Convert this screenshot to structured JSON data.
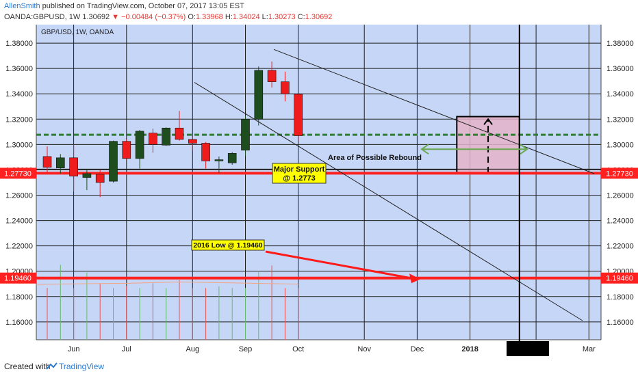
{
  "header": {
    "author": "AllenSmith",
    "published": "published on TradingView.com, October 07, 2017 13:05 EST",
    "symbol": "OANDA:GBPUSD",
    "interval": "1W",
    "last": "1.30692",
    "change_arrow": "▼",
    "change": "−0.00484 (−0.37%)",
    "o_label": "O:",
    "o": "1.33968",
    "h_label": "H:",
    "h": "1.34024",
    "l_label": "L:",
    "l": "1.30273",
    "c_label": "C:",
    "c": "1.30692"
  },
  "footer": {
    "created_with": "Created with",
    "brand": "TradingView"
  },
  "colors": {
    "plot_bg": "#c6d6f7",
    "axis_bg": "#ffffff",
    "grid": "#1e1e1e",
    "bull": "#1e4d1e",
    "bear": "#ee1c1c",
    "support": "#ff2020",
    "dotted": "#2e7d32",
    "rebound_box": "#e4b3c8",
    "green_arrow": "#6aa84f",
    "callout": "#ffff00",
    "ma": "#f4a582"
  },
  "chart_data": {
    "type": "candlestick",
    "title": "GBP/USD, 1W, OANDA",
    "x_ticks": [
      "Jun",
      "Jul",
      "Aug",
      "Sep",
      "Oct",
      "Nov",
      "Dec",
      "2018",
      "Mar"
    ],
    "y_ticks": [
      "1.38000",
      "1.36000",
      "1.34000",
      "1.32000",
      "1.30000",
      "1.28000",
      "1.26000",
      "1.24000",
      "1.22000",
      "1.20000",
      "1.18000",
      "1.16000"
    ],
    "ylim": [
      1.1459,
      1.3946
    ],
    "candles": [
      {
        "date": "2017-05-22",
        "open": 1.2905,
        "high": 1.2985,
        "low": 1.278,
        "close": 1.282
      },
      {
        "date": "2017-05-29",
        "open": 1.2815,
        "high": 1.2925,
        "low": 1.277,
        "close": 1.2895
      },
      {
        "date": "2017-06-05",
        "open": 1.2895,
        "high": 1.3,
        "low": 1.263,
        "close": 1.275
      },
      {
        "date": "2017-06-12",
        "open": 1.274,
        "high": 1.2805,
        "low": 1.264,
        "close": 1.277
      },
      {
        "date": "2017-06-19",
        "open": 1.2765,
        "high": 1.28,
        "low": 1.2585,
        "close": 1.27
      },
      {
        "date": "2017-06-26",
        "open": 1.271,
        "high": 1.303,
        "low": 1.27,
        "close": 1.3025
      },
      {
        "date": "2017-07-03",
        "open": 1.3025,
        "high": 1.304,
        "low": 1.288,
        "close": 1.289
      },
      {
        "date": "2017-07-10",
        "open": 1.289,
        "high": 1.3115,
        "low": 1.281,
        "close": 1.3105
      },
      {
        "date": "2017-07-17",
        "open": 1.309,
        "high": 1.3125,
        "low": 1.2935,
        "close": 1.3
      },
      {
        "date": "2017-07-24",
        "open": 1.2995,
        "high": 1.3135,
        "low": 1.299,
        "close": 1.313
      },
      {
        "date": "2017-07-31",
        "open": 1.313,
        "high": 1.3265,
        "low": 1.303,
        "close": 1.304
      },
      {
        "date": "2017-08-07",
        "open": 1.304,
        "high": 1.3065,
        "low": 1.2955,
        "close": 1.301
      },
      {
        "date": "2017-08-14",
        "open": 1.301,
        "high": 1.302,
        "low": 1.281,
        "close": 1.287
      },
      {
        "date": "2017-08-21",
        "open": 1.287,
        "high": 1.2905,
        "low": 1.2775,
        "close": 1.288
      },
      {
        "date": "2017-08-28",
        "open": 1.2855,
        "high": 1.294,
        "low": 1.284,
        "close": 1.293
      },
      {
        "date": "2017-09-04",
        "open": 1.2955,
        "high": 1.3225,
        "low": 1.291,
        "close": 1.32
      },
      {
        "date": "2017-09-11",
        "open": 1.32,
        "high": 1.3615,
        "low": 1.315,
        "close": 1.3585
      },
      {
        "date": "2017-09-18",
        "open": 1.3585,
        "high": 1.3655,
        "low": 1.345,
        "close": 1.3495
      },
      {
        "date": "2017-09-25",
        "open": 1.3495,
        "high": 1.3575,
        "low": 1.334,
        "close": 1.34
      },
      {
        "date": "2017-10-02",
        "open": 1.33968,
        "high": 1.34024,
        "low": 1.30273,
        "close": 1.30692
      }
    ],
    "price_labels": [
      {
        "value": 1.2773,
        "text": "1.27730"
      },
      {
        "value": 1.1946,
        "text": "1.19460"
      }
    ],
    "dotted_level": 1.3077,
    "annotations": {
      "major_support": [
        "Major Support",
        "@ 1.2773"
      ],
      "low_2016": "2016 Low @ 1.19460",
      "rebound": "Area of Possible Rebound"
    }
  }
}
